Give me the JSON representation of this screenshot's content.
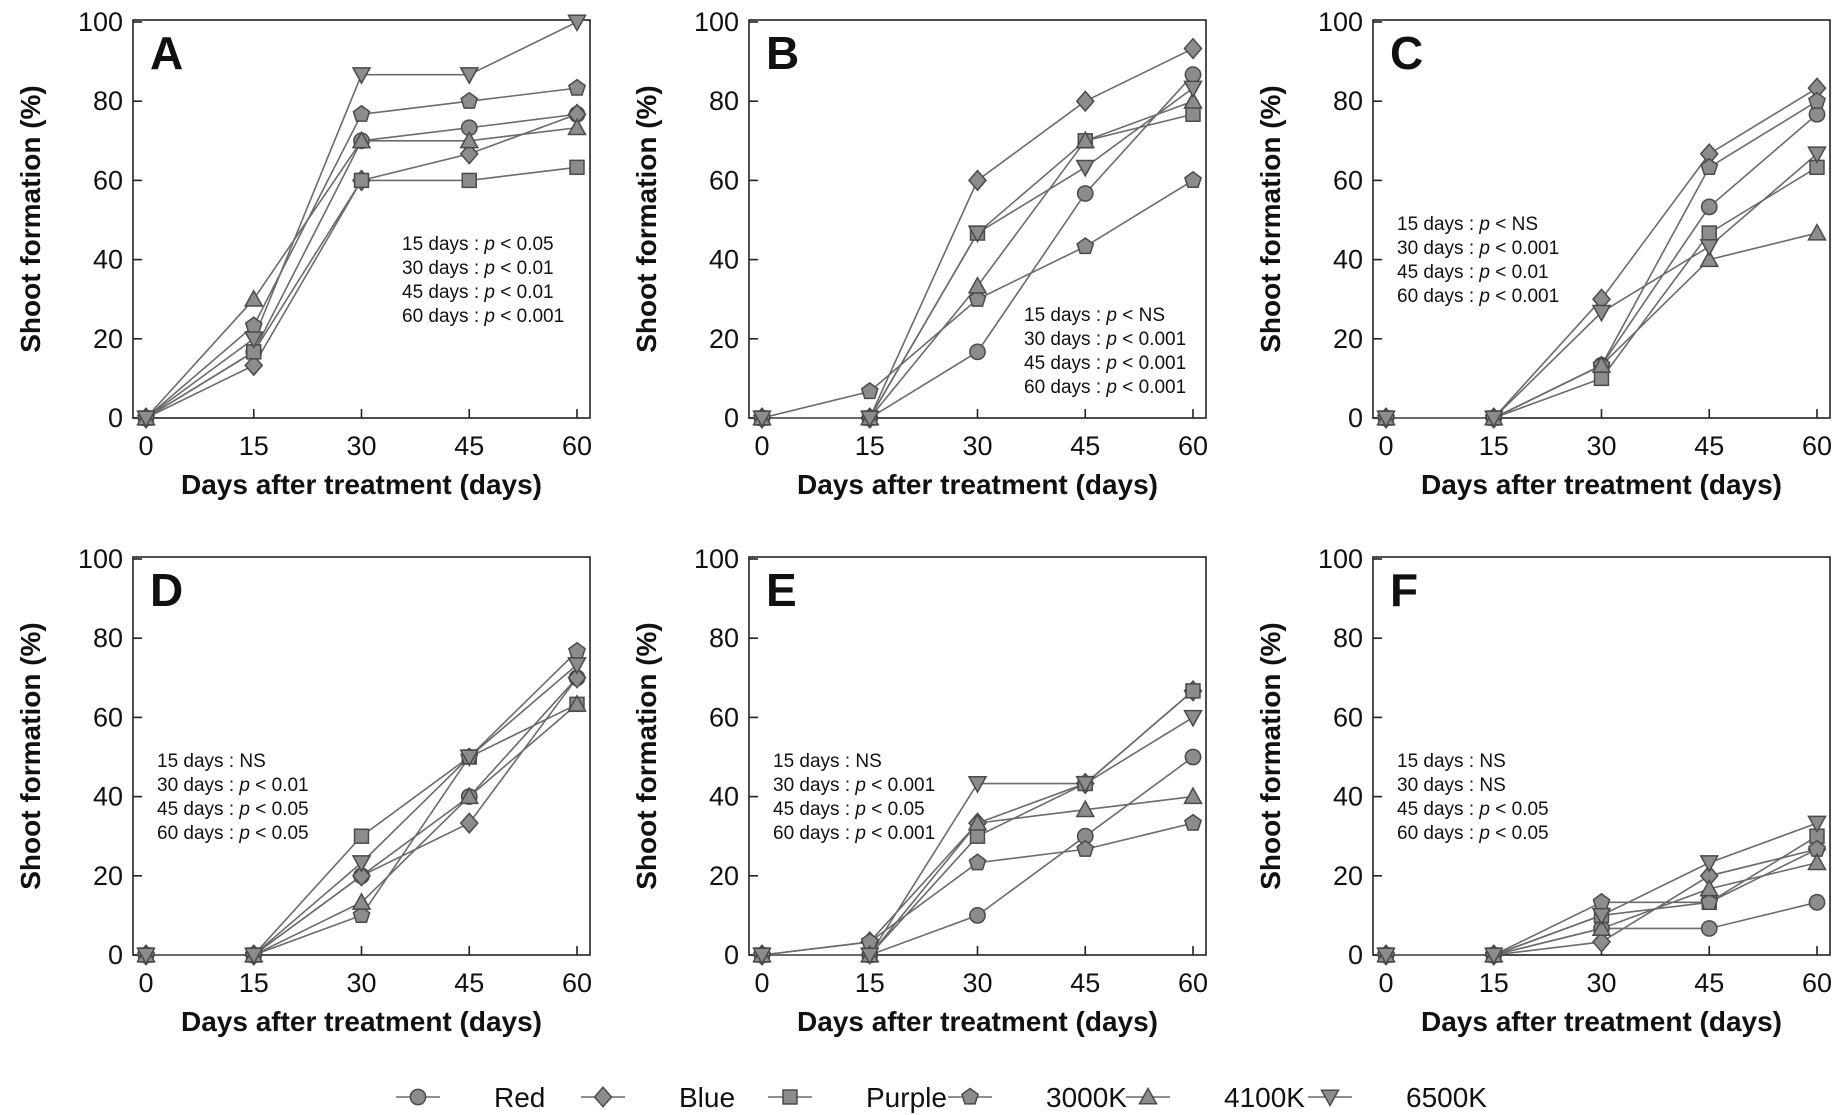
{
  "legend": [
    {
      "name": "Red",
      "marker": "circle-icon"
    },
    {
      "name": "Blue",
      "marker": "diamond-icon"
    },
    {
      "name": "Purple",
      "marker": "square-icon"
    },
    {
      "name": "3000K",
      "marker": "pentagon-icon"
    },
    {
      "name": "4100K",
      "marker": "triangle-up-icon"
    },
    {
      "name": "6500K",
      "marker": "triangle-down-icon"
    }
  ],
  "colors": {
    "line": "#6b6b6b",
    "marker_fill": "#8c8c8c",
    "marker_stroke": "#4a4a4a",
    "axis": "#222222"
  },
  "chart_data": [
    {
      "type": "line",
      "panel": "A",
      "xlabel": "Days after treatment (days)",
      "ylabel": "Shoot formation (%)",
      "x": [
        0,
        15,
        30,
        45,
        60
      ],
      "xticks": [
        "0",
        "15",
        "30",
        "45",
        "60"
      ],
      "ylim": [
        0,
        100
      ],
      "yticks": [
        "0",
        "20",
        "40",
        "60",
        "80",
        "100"
      ],
      "series": [
        {
          "name": "Red",
          "values": [
            0,
            16.7,
            70,
            73.3,
            76.7
          ]
        },
        {
          "name": "Blue",
          "values": [
            0,
            13.3,
            60,
            66.7,
            76.7
          ]
        },
        {
          "name": "Purple",
          "values": [
            0,
            16.7,
            60,
            60,
            63.3
          ]
        },
        {
          "name": "3000K",
          "values": [
            0,
            23.3,
            76.7,
            80,
            83.3
          ]
        },
        {
          "name": "4100K",
          "values": [
            0,
            30,
            70,
            70,
            73.3
          ]
        },
        {
          "name": "6500K",
          "values": [
            0,
            20,
            86.7,
            86.7,
            100
          ]
        }
      ],
      "stats_position": "mid-right",
      "stats": [
        {
          "day": "15 days",
          "sep": " : ",
          "p": "p",
          "rel": " < 0.05"
        },
        {
          "day": "30 days",
          "sep": " : ",
          "p": "p",
          "rel": " < 0.01"
        },
        {
          "day": "45 days",
          "sep": " : ",
          "p": "p",
          "rel": " < 0.01"
        },
        {
          "day": "60 days",
          "sep": " : ",
          "p": "p",
          "rel": " < 0.001"
        }
      ]
    },
    {
      "type": "line",
      "panel": "B",
      "xlabel": "Days after treatment (days)",
      "ylabel": "Shoot formation (%)",
      "x": [
        0,
        15,
        30,
        45,
        60
      ],
      "xticks": [
        "0",
        "15",
        "30",
        "45",
        "60"
      ],
      "ylim": [
        0,
        100
      ],
      "yticks": [
        "0",
        "20",
        "40",
        "60",
        "80",
        "100"
      ],
      "series": [
        {
          "name": "Red",
          "values": [
            0,
            0,
            16.7,
            56.7,
            86.7
          ]
        },
        {
          "name": "Blue",
          "values": [
            0,
            0,
            60,
            80,
            93.3
          ]
        },
        {
          "name": "Purple",
          "values": [
            0,
            0,
            46.7,
            70,
            76.7
          ]
        },
        {
          "name": "3000K",
          "values": [
            0,
            6.7,
            30,
            43.3,
            60
          ]
        },
        {
          "name": "4100K",
          "values": [
            0,
            0,
            33.3,
            70,
            80
          ]
        },
        {
          "name": "6500K",
          "values": [
            0,
            0,
            46.7,
            63.3,
            83.3
          ]
        }
      ],
      "stats_position": "bottom-right",
      "stats": [
        {
          "day": "15 days",
          "sep": " : ",
          "p": "p",
          "rel": " < NS"
        },
        {
          "day": "30 days",
          "sep": " : ",
          "p": "p",
          "rel": " < 0.001"
        },
        {
          "day": "45 days",
          "sep": " : ",
          "p": "p",
          "rel": " < 0.001"
        },
        {
          "day": "60 days",
          "sep": " : ",
          "p": "p",
          "rel": " < 0.001"
        }
      ]
    },
    {
      "type": "line",
      "panel": "C",
      "xlabel": "Days after treatment (days)",
      "ylabel": "Shoot formation (%)",
      "x": [
        0,
        15,
        30,
        45,
        60
      ],
      "xticks": [
        "0",
        "15",
        "30",
        "45",
        "60"
      ],
      "ylim": [
        0,
        100
      ],
      "yticks": [
        "0",
        "20",
        "40",
        "60",
        "80",
        "100"
      ],
      "series": [
        {
          "name": "Red",
          "values": [
            0,
            0,
            13.3,
            53.3,
            76.7
          ]
        },
        {
          "name": "Blue",
          "values": [
            0,
            0,
            30,
            66.7,
            83.3
          ]
        },
        {
          "name": "Purple",
          "values": [
            0,
            0,
            10,
            46.7,
            63.3
          ]
        },
        {
          "name": "3000K",
          "values": [
            0,
            0,
            13.3,
            63.3,
            80
          ]
        },
        {
          "name": "4100K",
          "values": [
            0,
            0,
            13.3,
            40,
            46.7
          ]
        },
        {
          "name": "6500K",
          "values": [
            0,
            0,
            26.7,
            43.3,
            66.7
          ]
        }
      ],
      "stats_position": "mid-left",
      "stats": [
        {
          "day": "15 days",
          "sep": " : ",
          "p": "p",
          "rel": " < NS"
        },
        {
          "day": "30 days",
          "sep": " : ",
          "p": "p",
          "rel": " < 0.001"
        },
        {
          "day": "45 days",
          "sep": " : ",
          "p": "p",
          "rel": " < 0.01"
        },
        {
          "day": "60 days",
          "sep": " : ",
          "p": "p",
          "rel": " < 0.001"
        }
      ]
    },
    {
      "type": "line",
      "panel": "D",
      "xlabel": "Days after treatment (days)",
      "ylabel": "Shoot formation (%)",
      "x": [
        0,
        15,
        30,
        45,
        60
      ],
      "xticks": [
        "0",
        "15",
        "30",
        "45",
        "60"
      ],
      "ylim": [
        0,
        100
      ],
      "yticks": [
        "0",
        "20",
        "40",
        "60",
        "80",
        "100"
      ],
      "series": [
        {
          "name": "Red",
          "values": [
            0,
            0,
            20,
            40,
            70
          ]
        },
        {
          "name": "Blue",
          "values": [
            0,
            0,
            20,
            33.3,
            70
          ]
        },
        {
          "name": "Purple",
          "values": [
            0,
            0,
            30,
            50,
            63.3
          ]
        },
        {
          "name": "3000K",
          "values": [
            0,
            0,
            10,
            50,
            76.7
          ]
        },
        {
          "name": "4100K",
          "values": [
            0,
            0,
            13.3,
            40,
            63.3
          ]
        },
        {
          "name": "6500K",
          "values": [
            0,
            0,
            23.3,
            50,
            73.3
          ]
        }
      ],
      "stats_position": "mid-left",
      "stats": [
        {
          "day": "15 days",
          "sep": " : ",
          "p": "",
          "rel": "NS"
        },
        {
          "day": "30 days",
          "sep": " : ",
          "p": "p",
          "rel": " < 0.01"
        },
        {
          "day": "45 days",
          "sep": " : ",
          "p": "p",
          "rel": " < 0.05"
        },
        {
          "day": "60 days",
          "sep": " : ",
          "p": "p",
          "rel": " < 0.05"
        }
      ]
    },
    {
      "type": "line",
      "panel": "E",
      "xlabel": "Days after treatment (days)",
      "ylabel": "Shoot formation (%)",
      "x": [
        0,
        15,
        30,
        45,
        60
      ],
      "xticks": [
        "0",
        "15",
        "30",
        "45",
        "60"
      ],
      "ylim": [
        0,
        100
      ],
      "yticks": [
        "0",
        "20",
        "40",
        "60",
        "80",
        "100"
      ],
      "series": [
        {
          "name": "Red",
          "values": [
            0,
            0,
            10,
            30,
            50
          ]
        },
        {
          "name": "Blue",
          "values": [
            0,
            3.3,
            33.3,
            43.3,
            66.7
          ]
        },
        {
          "name": "Purple",
          "values": [
            0,
            0,
            30,
            43.3,
            66.7
          ]
        },
        {
          "name": "3000K",
          "values": [
            0,
            3.3,
            23.3,
            26.7,
            33.3
          ]
        },
        {
          "name": "4100K",
          "values": [
            0,
            0,
            33.3,
            36.7,
            40
          ]
        },
        {
          "name": "6500K",
          "values": [
            0,
            0,
            43.3,
            43.3,
            60
          ]
        }
      ],
      "stats_position": "mid-left",
      "stats": [
        {
          "day": "15 days",
          "sep": " : ",
          "p": "",
          "rel": "NS"
        },
        {
          "day": "30 days",
          "sep": " : ",
          "p": "p",
          "rel": " < 0.001"
        },
        {
          "day": "45 days",
          "sep": " : ",
          "p": "p",
          "rel": " < 0.05"
        },
        {
          "day": "60 days",
          "sep": " : ",
          "p": "p",
          "rel": " < 0.001"
        }
      ]
    },
    {
      "type": "line",
      "panel": "F",
      "xlabel": "Days after treatment (days)",
      "ylabel": "Shoot formation (%)",
      "x": [
        0,
        15,
        30,
        45,
        60
      ],
      "xticks": [
        "0",
        "15",
        "30",
        "45",
        "60"
      ],
      "ylim": [
        0,
        100
      ],
      "yticks": [
        "0",
        "20",
        "40",
        "60",
        "80",
        "100"
      ],
      "series": [
        {
          "name": "Red",
          "values": [
            0,
            0,
            6.7,
            6.7,
            13.3
          ]
        },
        {
          "name": "Blue",
          "values": [
            0,
            0,
            3.3,
            20,
            26.7
          ]
        },
        {
          "name": "Purple",
          "values": [
            0,
            0,
            10,
            13.3,
            30
          ]
        },
        {
          "name": "3000K",
          "values": [
            0,
            0,
            13.3,
            13.3,
            26.7
          ]
        },
        {
          "name": "4100K",
          "values": [
            0,
            0,
            6.7,
            16.7,
            23.3
          ]
        },
        {
          "name": "6500K",
          "values": [
            0,
            0,
            10,
            23.3,
            33.3
          ]
        }
      ],
      "stats_position": "mid-left",
      "stats": [
        {
          "day": "15 days",
          "sep": " : ",
          "p": "",
          "rel": "NS"
        },
        {
          "day": "30 days",
          "sep": " : ",
          "p": "",
          "rel": "NS"
        },
        {
          "day": "45 days",
          "sep": " : ",
          "p": "p",
          "rel": " < 0.05"
        },
        {
          "day": "60 days",
          "sep": " : ",
          "p": "p",
          "rel": " < 0.05"
        }
      ]
    }
  ]
}
